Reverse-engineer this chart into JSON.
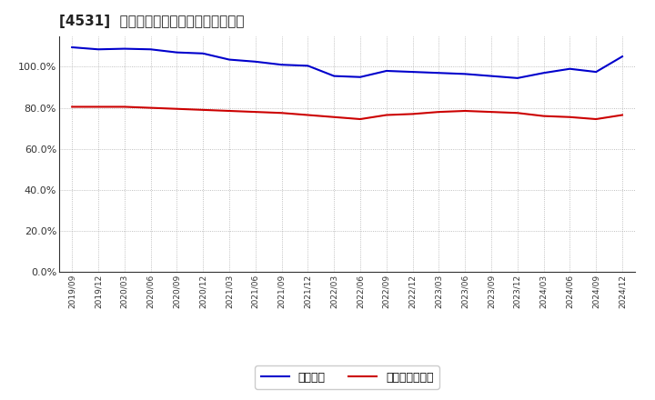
{
  "title": "[4531]  固定比率、固定長期適合率の推移",
  "x_labels": [
    "2019/09",
    "2019/12",
    "2020/03",
    "2020/06",
    "2020/09",
    "2020/12",
    "2021/03",
    "2021/06",
    "2021/09",
    "2021/12",
    "2022/03",
    "2022/06",
    "2022/09",
    "2022/12",
    "2023/03",
    "2023/06",
    "2023/09",
    "2023/12",
    "2024/03",
    "2024/06",
    "2024/09",
    "2024/12"
  ],
  "fixed_ratio": [
    109.5,
    108.5,
    108.8,
    108.5,
    107.0,
    106.5,
    103.5,
    102.5,
    101.0,
    100.5,
    95.5,
    95.0,
    98.0,
    97.5,
    97.0,
    96.5,
    95.5,
    94.5,
    97.0,
    99.0,
    97.5,
    105.0
  ],
  "fixed_long_ratio": [
    80.5,
    80.5,
    80.5,
    80.0,
    79.5,
    79.0,
    78.5,
    78.0,
    77.5,
    76.5,
    75.5,
    74.5,
    76.5,
    77.0,
    78.0,
    78.5,
    78.0,
    77.5,
    76.0,
    75.5,
    74.5,
    76.5
  ],
  "blue_color": "#0000cc",
  "red_color": "#cc0000",
  "bg_color": "#ffffff",
  "grid_color": "#999999",
  "legend_fixed": "固定比率",
  "legend_fixed_long": "固定長期適合率",
  "ylim": [
    0,
    115
  ],
  "yticks": [
    0,
    20,
    40,
    60,
    80,
    100
  ],
  "ytick_labels": [
    "0.0%",
    "20.0%",
    "40.0%",
    "60.0%",
    "80.0%",
    "100.0%"
  ]
}
